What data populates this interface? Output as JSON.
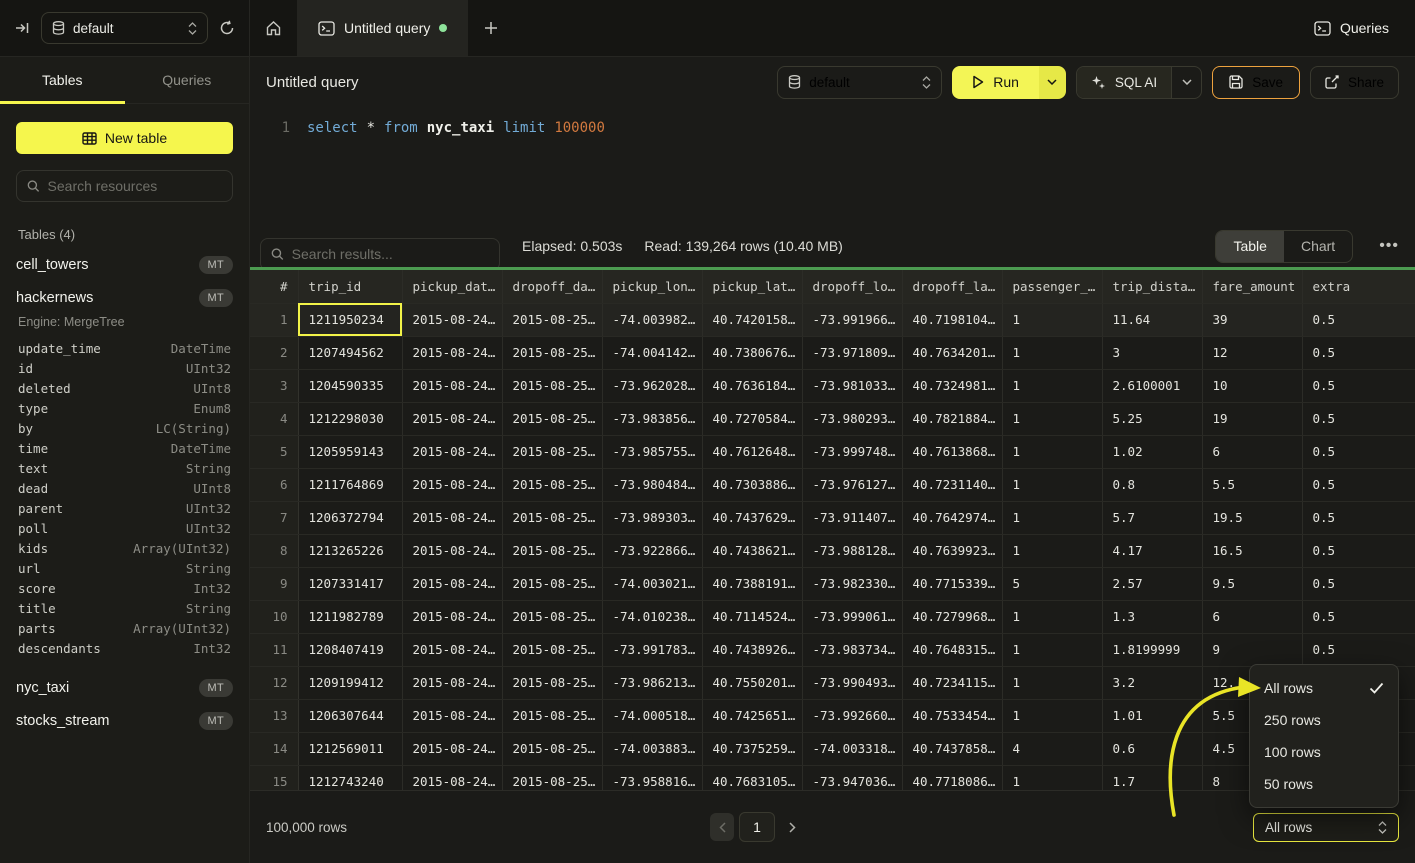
{
  "topbar": {
    "database_selector": "default",
    "tab_title": "Untitled query",
    "queries_label": "Queries"
  },
  "sidebar": {
    "tab_tables": "Tables",
    "tab_queries": "Queries",
    "new_table_label": "New table",
    "search_placeholder": "Search resources",
    "section_title": "Tables (4)",
    "table_cell_towers": "cell_towers",
    "table_hackernews": "hackernews",
    "table_nyc_taxi": "nyc_taxi",
    "table_stocks_stream": "stocks_stream",
    "badge_mt": "MT",
    "hackernews_engine": "Engine: MergeTree",
    "hackernews_columns": [
      {
        "name": "update_time",
        "type": "DateTime"
      },
      {
        "name": "id",
        "type": "UInt32"
      },
      {
        "name": "deleted",
        "type": "UInt8"
      },
      {
        "name": "type",
        "type": "Enum8"
      },
      {
        "name": "by",
        "type": "LC(String)"
      },
      {
        "name": "time",
        "type": "DateTime"
      },
      {
        "name": "text",
        "type": "String"
      },
      {
        "name": "dead",
        "type": "UInt8"
      },
      {
        "name": "parent",
        "type": "UInt32"
      },
      {
        "name": "poll",
        "type": "UInt32"
      },
      {
        "name": "kids",
        "type": "Array(UInt32)"
      },
      {
        "name": "url",
        "type": "String"
      },
      {
        "name": "score",
        "type": "Int32"
      },
      {
        "name": "title",
        "type": "String"
      },
      {
        "name": "parts",
        "type": "Array(UInt32)"
      },
      {
        "name": "descendants",
        "type": "Int32"
      }
    ]
  },
  "query": {
    "title": "Untitled query",
    "database_selector": "default",
    "run_label": "Run",
    "sql_ai_label": "SQL AI",
    "save_label": "Save",
    "share_label": "Share",
    "editor": {
      "line_number": "1",
      "kw_select": "select",
      "op_star": "*",
      "kw_from": "from",
      "table_ref": "nyc_taxi",
      "kw_limit": "limit",
      "num_limit": "100000"
    }
  },
  "results": {
    "search_placeholder": "Search results...",
    "elapsed": "Elapsed: 0.503s",
    "read": "Read: 139,264 rows (10.40 MB)",
    "view_table": "Table",
    "view_chart": "Chart",
    "columns": [
      "#",
      "trip_id",
      "pickup_dat…",
      "dropoff_da…",
      "pickup_lon…",
      "pickup_lat…",
      "dropoff_lo…",
      "dropoff_la…",
      "passenger_…",
      "trip_dista…",
      "fare_amount",
      "extra"
    ],
    "rows": [
      [
        "1",
        "1211950234",
        "2015-08-24…",
        "2015-08-25…",
        "-74.003982…",
        "40.7420158…",
        "-73.991966…",
        "40.7198104…",
        "1",
        "11.64",
        "39",
        "0.5"
      ],
      [
        "2",
        "1207494562",
        "2015-08-24…",
        "2015-08-25…",
        "-74.004142…",
        "40.7380676…",
        "-73.971809…",
        "40.7634201…",
        "1",
        "3",
        "12",
        "0.5"
      ],
      [
        "3",
        "1204590335",
        "2015-08-24…",
        "2015-08-25…",
        "-73.962028…",
        "40.7636184…",
        "-73.981033…",
        "40.7324981…",
        "1",
        "2.6100001",
        "10",
        "0.5"
      ],
      [
        "4",
        "1212298030",
        "2015-08-24…",
        "2015-08-25…",
        "-73.983856…",
        "40.7270584…",
        "-73.980293…",
        "40.7821884…",
        "1",
        "5.25",
        "19",
        "0.5"
      ],
      [
        "5",
        "1205959143",
        "2015-08-24…",
        "2015-08-25…",
        "-73.985755…",
        "40.7612648…",
        "-73.999748…",
        "40.7613868…",
        "1",
        "1.02",
        "6",
        "0.5"
      ],
      [
        "6",
        "1211764869",
        "2015-08-24…",
        "2015-08-25…",
        "-73.980484…",
        "40.7303886…",
        "-73.976127…",
        "40.7231140…",
        "1",
        "0.8",
        "5.5",
        "0.5"
      ],
      [
        "7",
        "1206372794",
        "2015-08-24…",
        "2015-08-25…",
        "-73.989303…",
        "40.7437629…",
        "-73.911407…",
        "40.7642974…",
        "1",
        "5.7",
        "19.5",
        "0.5"
      ],
      [
        "8",
        "1213265226",
        "2015-08-24…",
        "2015-08-25…",
        "-73.922866…",
        "40.7438621…",
        "-73.988128…",
        "40.7639923…",
        "1",
        "4.17",
        "16.5",
        "0.5"
      ],
      [
        "9",
        "1207331417",
        "2015-08-24…",
        "2015-08-25…",
        "-74.003021…",
        "40.7388191…",
        "-73.982330…",
        "40.7715339…",
        "5",
        "2.57",
        "9.5",
        "0.5"
      ],
      [
        "10",
        "1211982789",
        "2015-08-24…",
        "2015-08-25…",
        "-74.010238…",
        "40.7114524…",
        "-73.999061…",
        "40.7279968…",
        "1",
        "1.3",
        "6",
        "0.5"
      ],
      [
        "11",
        "1208407419",
        "2015-08-24…",
        "2015-08-25…",
        "-73.991783…",
        "40.7438926…",
        "-73.983734…",
        "40.7648315…",
        "1",
        "1.8199999",
        "9",
        "0.5"
      ],
      [
        "12",
        "1209199412",
        "2015-08-24…",
        "2015-08-25…",
        "-73.986213…",
        "40.7550201…",
        "-73.990493…",
        "40.7234115…",
        "1",
        "3.2",
        "12.",
        ""
      ],
      [
        "13",
        "1206307644",
        "2015-08-24…",
        "2015-08-25…",
        "-74.000518…",
        "40.7425651…",
        "-73.992660…",
        "40.7533454…",
        "1",
        "1.01",
        "5.5",
        ""
      ],
      [
        "14",
        "1212569011",
        "2015-08-24…",
        "2015-08-25…",
        "-74.003883…",
        "40.7375259…",
        "-74.003318…",
        "40.7437858…",
        "4",
        "0.6",
        "4.5",
        ""
      ],
      [
        "15",
        "1212743240",
        "2015-08-24…",
        "2015-08-25…",
        "-73.958816…",
        "40.7683105…",
        "-73.947036…",
        "40.7718086…",
        "1",
        "1.7",
        "8",
        ""
      ]
    ]
  },
  "footer": {
    "row_count": "100,000 rows",
    "page": "1",
    "page_size_value": "All rows"
  },
  "popup": {
    "options": [
      {
        "label": "All rows",
        "selected": true
      },
      {
        "label": "250 rows",
        "selected": false
      },
      {
        "label": "100 rows",
        "selected": false
      },
      {
        "label": "50 rows",
        "selected": false
      }
    ]
  }
}
